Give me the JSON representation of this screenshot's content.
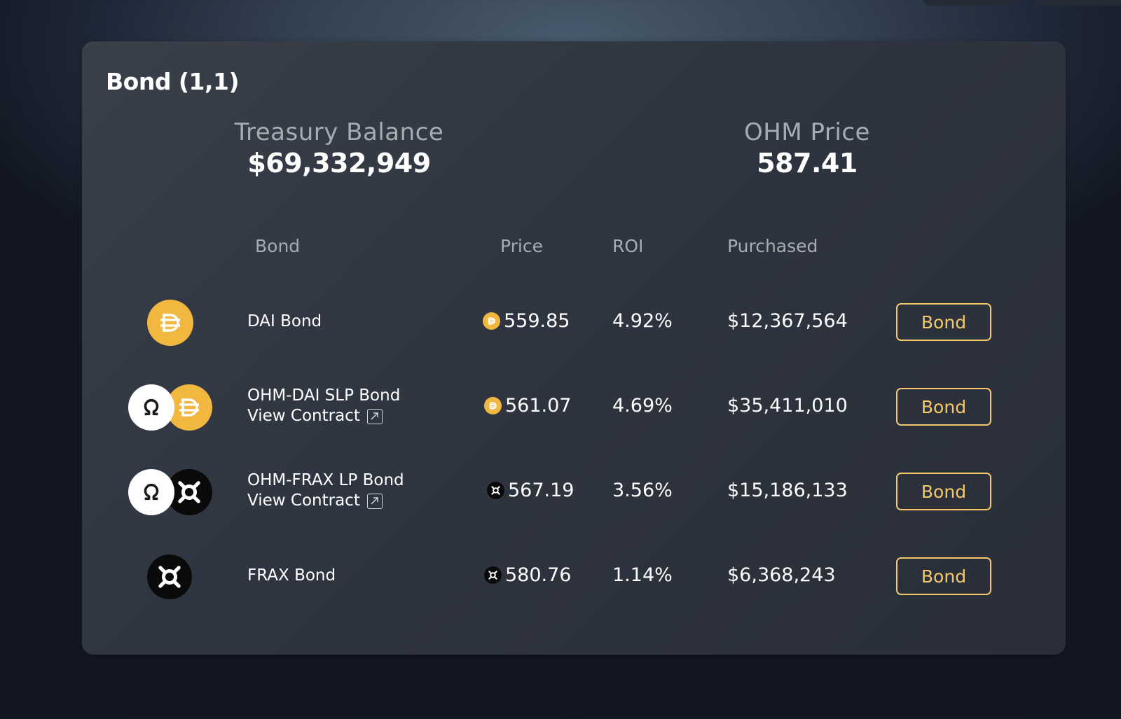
{
  "card": {
    "title": "Bond (1,1)",
    "treasury_label": "Treasury Balance",
    "treasury_value": "$69,332,949",
    "price_label": "OHM Price",
    "price_value": "587.41"
  },
  "table": {
    "headers": {
      "bond": "Bond",
      "price": "Price",
      "roi": "ROI",
      "purchased": "Purchased"
    },
    "rows": [
      {
        "name": "DAI Bond",
        "icons": [
          "dai-icon"
        ],
        "price_icon": "dai-icon",
        "price": "559.85",
        "roi": "4.92%",
        "purchased": "$12,367,564",
        "button": "Bond"
      },
      {
        "name": "OHM-DAI SLP Bond",
        "link": "View Contract",
        "icons": [
          "ohm-icon",
          "dai-icon"
        ],
        "price_icon": "dai-icon",
        "price": "561.07",
        "roi": "4.69%",
        "purchased": "$35,411,010",
        "button": "Bond"
      },
      {
        "name": "OHM-FRAX LP Bond",
        "link": "View Contract",
        "icons": [
          "ohm-icon",
          "frax-icon"
        ],
        "price_icon": "frax-icon",
        "price": "567.19",
        "roi": "3.56%",
        "purchased": "$15,186,133",
        "button": "Bond"
      },
      {
        "name": "FRAX Bond",
        "icons": [
          "frax-icon"
        ],
        "price_icon": "frax-icon",
        "price": "580.76",
        "roi": "1.14%",
        "purchased": "$6,368,243",
        "button": "Bond"
      }
    ]
  },
  "colors": {
    "accent": "#f5c86a",
    "dai": "#f2b73e",
    "frax": "#0a0a0a",
    "ohm": "#ffffff"
  }
}
